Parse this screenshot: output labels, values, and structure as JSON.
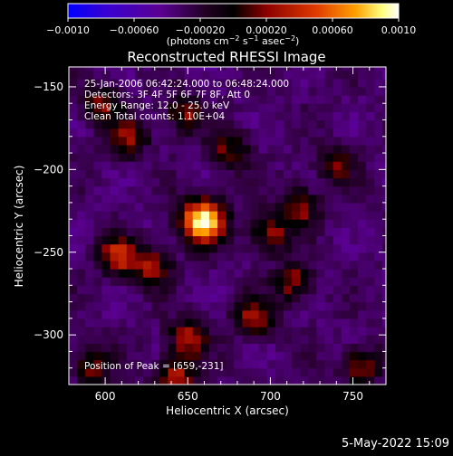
{
  "colorbar": {
    "tick_labels": [
      "−0.0010",
      "−0.00060",
      "−0.00020",
      "0.00020",
      "0.00060",
      "0.0010"
    ],
    "tick_values": [
      -0.001,
      -0.0006,
      -0.0002,
      0.0002,
      0.0006,
      0.001
    ],
    "range": [
      -0.001,
      0.001
    ],
    "unit_main": "(photons cm",
    "unit_sup1": "−2",
    "unit_mid1": " s",
    "unit_sup2": "−1",
    "unit_mid2": " asec",
    "unit_sup3": "−2",
    "unit_end": ")",
    "colors": [
      "#0000ff",
      "#4a00b4",
      "#5a0090",
      "#000000",
      "#8b0000",
      "#d83000",
      "#ff9000",
      "#ffff80",
      "#ffffff"
    ]
  },
  "plot": {
    "title": "Reconstructed RHESSI Image",
    "info_lines": [
      "25-Jan-2006 06:42:24.000 to 06:48:24.000",
      "Detectors: 3F 4F 5F 6F 7F 8F, Att 0",
      "Energy Range: 12.0 - 25.0 keV",
      "Clean     Total counts: 1.10E+04"
    ],
    "peak_label": "Position of Peak = [659,-231]",
    "footer_date": "5-May-2022 15:09"
  },
  "chart_data": {
    "type": "heatmap",
    "title": "Reconstructed RHESSI Image",
    "xlabel": "Heliocentric X (arcsec)",
    "ylabel": "Heliocentric Y (arcsec)",
    "xlim": [
      578,
      770
    ],
    "ylim": [
      -330,
      -138
    ],
    "x_ticks": [
      600,
      650,
      700,
      750
    ],
    "x_tick_labels": [
      "600",
      "650",
      "700",
      "750"
    ],
    "y_ticks": [
      -300,
      -250,
      -200,
      -150
    ],
    "y_tick_labels": [
      "−300",
      "−250",
      "−200",
      "−150"
    ],
    "value_range": [
      -0.001,
      0.001
    ],
    "peak": [
      659,
      -231
    ],
    "sources": [
      {
        "x": 659,
        "y": -231,
        "peak": 0.001
      },
      {
        "x": 608,
        "y": -252,
        "peak": 0.00045
      },
      {
        "x": 628,
        "y": -258,
        "peak": 0.00035
      },
      {
        "x": 650,
        "y": -302,
        "peak": 0.00035
      },
      {
        "x": 643,
        "y": -325,
        "peak": 0.0004
      },
      {
        "x": 690,
        "y": -290,
        "peak": 0.0003
      },
      {
        "x": 714,
        "y": -268,
        "peak": 0.0003
      },
      {
        "x": 700,
        "y": -238,
        "peak": 0.00028
      },
      {
        "x": 718,
        "y": -222,
        "peak": 0.00028
      },
      {
        "x": 614,
        "y": -181,
        "peak": 0.0003
      },
      {
        "x": 598,
        "y": -160,
        "peak": 0.00022
      },
      {
        "x": 648,
        "y": -166,
        "peak": 0.00025
      },
      {
        "x": 755,
        "y": -318,
        "peak": 0.00028
      },
      {
        "x": 592,
        "y": -318,
        "peak": 0.00022
      },
      {
        "x": 740,
        "y": -196,
        "peak": 0.0002
      },
      {
        "x": 676,
        "y": -188,
        "peak": 0.0002
      }
    ],
    "colormap": [
      "#0000ff",
      "#4a00b4",
      "#5a0090",
      "#000000",
      "#8b0000",
      "#d83000",
      "#ff9000",
      "#ffff80",
      "#ffffff"
    ]
  }
}
